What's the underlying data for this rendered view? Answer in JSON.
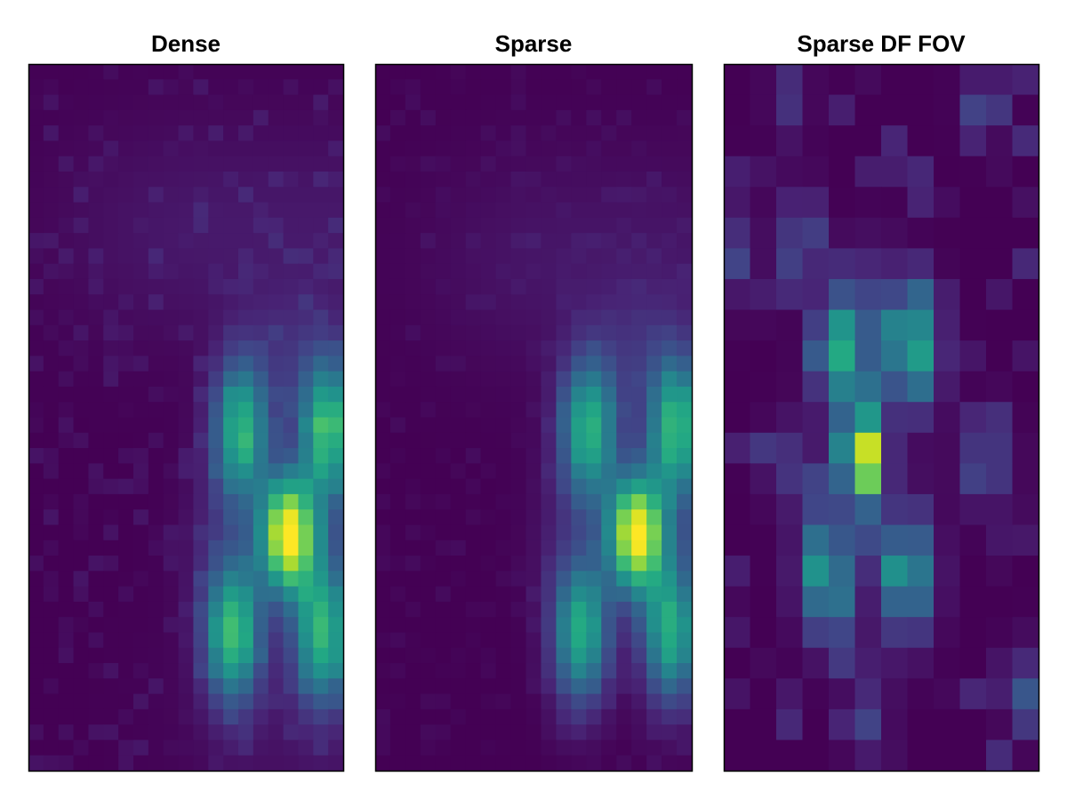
{
  "chart_data": [
    {
      "type": "heatmap",
      "title": "Dense",
      "colormap": "viridis",
      "grid": false,
      "blobs": [
        {
          "row": 11.9,
          "col": 8.1,
          "sr": 1.6,
          "sc": 0.75,
          "amp": 0.62
        },
        {
          "row": 11.9,
          "col": 11.4,
          "sr": 1.6,
          "sc": 0.75,
          "amp": 0.66
        },
        {
          "row": 15.3,
          "col": 9.9,
          "sr": 1.3,
          "sc": 0.75,
          "amp": 1.0
        },
        {
          "row": 18.5,
          "col": 7.8,
          "sr": 1.6,
          "sc": 0.75,
          "amp": 0.66
        },
        {
          "row": 18.5,
          "col": 11.2,
          "sr": 1.6,
          "sc": 0.75,
          "amp": 0.62
        },
        {
          "row": 9.5,
          "col": 10.0,
          "sr": 1.5,
          "sc": 1.2,
          "amp": 0.1
        },
        {
          "row": 15.3,
          "col": 7.3,
          "sr": 1.8,
          "sc": 1.0,
          "amp": 0.08
        },
        {
          "row": 15.3,
          "col": 12.4,
          "sr": 1.8,
          "sc": 1.0,
          "amp": 0.08
        },
        {
          "row": 5.5,
          "col": 6.0,
          "sr": 2.5,
          "sc": 3.5,
          "amp": 0.06
        },
        {
          "row": 5.5,
          "col": 13.5,
          "sr": 2.5,
          "sc": 3.5,
          "amp": 0.06
        },
        {
          "row": 21.0,
          "col": 10.5,
          "sr": 3.0,
          "sc": 3.0,
          "amp": 0.05
        }
      ],
      "noise": 0.055,
      "seed": 11
    },
    {
      "type": "heatmap",
      "title": "Sparse",
      "colormap": "viridis",
      "grid": false,
      "blobs": [
        {
          "row": 11.9,
          "col": 8.1,
          "sr": 1.6,
          "sc": 0.75,
          "amp": 0.62
        },
        {
          "row": 11.9,
          "col": 11.4,
          "sr": 1.6,
          "sc": 0.75,
          "amp": 0.64
        },
        {
          "row": 15.3,
          "col": 9.9,
          "sr": 1.3,
          "sc": 0.75,
          "amp": 1.0
        },
        {
          "row": 18.5,
          "col": 7.8,
          "sr": 1.6,
          "sc": 0.75,
          "amp": 0.6
        },
        {
          "row": 18.5,
          "col": 11.2,
          "sr": 1.6,
          "sc": 0.75,
          "amp": 0.6
        },
        {
          "row": 9.5,
          "col": 10.0,
          "sr": 1.5,
          "sc": 1.2,
          "amp": 0.1
        },
        {
          "row": 15.3,
          "col": 7.3,
          "sr": 1.8,
          "sc": 1.0,
          "amp": 0.07
        },
        {
          "row": 15.3,
          "col": 12.4,
          "sr": 1.8,
          "sc": 1.0,
          "amp": 0.08
        },
        {
          "row": 6.5,
          "col": 6.0,
          "sr": 2.5,
          "sc": 3.0,
          "amp": 0.05
        },
        {
          "row": 6.5,
          "col": 12.0,
          "sr": 2.5,
          "sc": 3.0,
          "amp": 0.05
        }
      ],
      "noise": 0.03,
      "seed": 23
    },
    {
      "type": "heatmap",
      "title": "Sparse DF FOV",
      "colormap": "viridis",
      "grid": false,
      "blobs": [
        {
          "row": 9.3,
          "col": 4.5,
          "sr": 1.3,
          "sc": 0.7,
          "amp": 0.6
        },
        {
          "row": 9.3,
          "col": 7.2,
          "sr": 1.3,
          "sc": 0.7,
          "amp": 0.6
        },
        {
          "row": 12.8,
          "col": 5.3,
          "sr": 1.1,
          "sc": 0.55,
          "amp": 1.0
        },
        {
          "row": 16.6,
          "col": 3.9,
          "sr": 1.4,
          "sc": 0.7,
          "amp": 0.5
        },
        {
          "row": 16.6,
          "col": 7.0,
          "sr": 1.4,
          "sc": 0.7,
          "amp": 0.5
        },
        {
          "row": 5.5,
          "col": 3.0,
          "sr": 1.0,
          "sc": 0.5,
          "amp": 0.25
        },
        {
          "row": 13.0,
          "col": 10.0,
          "sr": 1.0,
          "sc": 0.7,
          "amp": 0.22
        },
        {
          "row": 13.0,
          "col": 2.5,
          "sr": 1.0,
          "sc": 0.7,
          "amp": 0.15
        },
        {
          "row": 6.0,
          "col": 0.5,
          "sr": 1.2,
          "sc": 0.6,
          "amp": 0.14
        },
        {
          "row": 20.3,
          "col": 11.5,
          "sr": 1.0,
          "sc": 0.6,
          "amp": 0.16
        },
        {
          "row": 7.5,
          "col": 5.8,
          "sr": 1.3,
          "sc": 0.7,
          "amp": 0.12
        },
        {
          "row": 1.0,
          "col": 2.5,
          "sr": 1.0,
          "sc": 0.5,
          "amp": 0.14
        },
        {
          "row": 1.0,
          "col": 10.0,
          "sr": 1.0,
          "sc": 0.6,
          "amp": 0.12
        },
        {
          "row": 21.0,
          "col": 5.5,
          "sr": 1.5,
          "sc": 0.6,
          "amp": 0.12
        }
      ],
      "noise": 0.12,
      "seed": 47
    }
  ]
}
